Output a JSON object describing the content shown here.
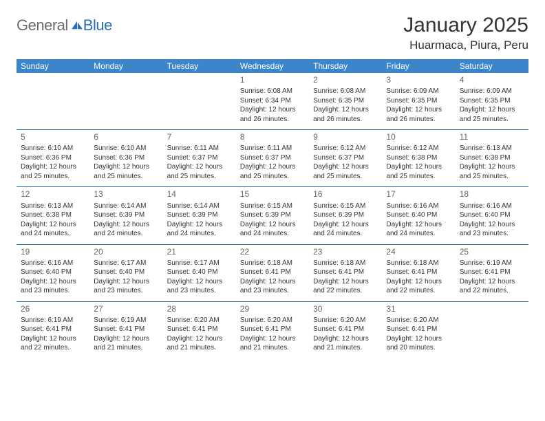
{
  "brand": {
    "part1": "General",
    "part2": "Blue"
  },
  "title": "January 2025",
  "location": "Huarmaca, Piura, Peru",
  "colors": {
    "header_bg": "#3b85c8",
    "header_text": "#ffffff",
    "rule": "#2a6db8",
    "body_text": "#333333",
    "day_number": "#666666",
    "logo_gray": "#6b6b6b",
    "logo_blue": "#2a6db8",
    "page_bg": "#ffffff"
  },
  "typography": {
    "title_fontsize": 30,
    "location_fontsize": 17,
    "dow_fontsize": 12,
    "daynum_fontsize": 12,
    "body_fontsize": 10
  },
  "days_of_week": [
    "Sunday",
    "Monday",
    "Tuesday",
    "Wednesday",
    "Thursday",
    "Friday",
    "Saturday"
  ],
  "weeks": [
    [
      null,
      null,
      null,
      {
        "n": "1",
        "sunrise": "6:08 AM",
        "sunset": "6:34 PM",
        "daylight": "12 hours and 26 minutes."
      },
      {
        "n": "2",
        "sunrise": "6:08 AM",
        "sunset": "6:35 PM",
        "daylight": "12 hours and 26 minutes."
      },
      {
        "n": "3",
        "sunrise": "6:09 AM",
        "sunset": "6:35 PM",
        "daylight": "12 hours and 26 minutes."
      },
      {
        "n": "4",
        "sunrise": "6:09 AM",
        "sunset": "6:35 PM",
        "daylight": "12 hours and 25 minutes."
      }
    ],
    [
      {
        "n": "5",
        "sunrise": "6:10 AM",
        "sunset": "6:36 PM",
        "daylight": "12 hours and 25 minutes."
      },
      {
        "n": "6",
        "sunrise": "6:10 AM",
        "sunset": "6:36 PM",
        "daylight": "12 hours and 25 minutes."
      },
      {
        "n": "7",
        "sunrise": "6:11 AM",
        "sunset": "6:37 PM",
        "daylight": "12 hours and 25 minutes."
      },
      {
        "n": "8",
        "sunrise": "6:11 AM",
        "sunset": "6:37 PM",
        "daylight": "12 hours and 25 minutes."
      },
      {
        "n": "9",
        "sunrise": "6:12 AM",
        "sunset": "6:37 PM",
        "daylight": "12 hours and 25 minutes."
      },
      {
        "n": "10",
        "sunrise": "6:12 AM",
        "sunset": "6:38 PM",
        "daylight": "12 hours and 25 minutes."
      },
      {
        "n": "11",
        "sunrise": "6:13 AM",
        "sunset": "6:38 PM",
        "daylight": "12 hours and 25 minutes."
      }
    ],
    [
      {
        "n": "12",
        "sunrise": "6:13 AM",
        "sunset": "6:38 PM",
        "daylight": "12 hours and 24 minutes."
      },
      {
        "n": "13",
        "sunrise": "6:14 AM",
        "sunset": "6:39 PM",
        "daylight": "12 hours and 24 minutes."
      },
      {
        "n": "14",
        "sunrise": "6:14 AM",
        "sunset": "6:39 PM",
        "daylight": "12 hours and 24 minutes."
      },
      {
        "n": "15",
        "sunrise": "6:15 AM",
        "sunset": "6:39 PM",
        "daylight": "12 hours and 24 minutes."
      },
      {
        "n": "16",
        "sunrise": "6:15 AM",
        "sunset": "6:39 PM",
        "daylight": "12 hours and 24 minutes."
      },
      {
        "n": "17",
        "sunrise": "6:16 AM",
        "sunset": "6:40 PM",
        "daylight": "12 hours and 24 minutes."
      },
      {
        "n": "18",
        "sunrise": "6:16 AM",
        "sunset": "6:40 PM",
        "daylight": "12 hours and 23 minutes."
      }
    ],
    [
      {
        "n": "19",
        "sunrise": "6:16 AM",
        "sunset": "6:40 PM",
        "daylight": "12 hours and 23 minutes."
      },
      {
        "n": "20",
        "sunrise": "6:17 AM",
        "sunset": "6:40 PM",
        "daylight": "12 hours and 23 minutes."
      },
      {
        "n": "21",
        "sunrise": "6:17 AM",
        "sunset": "6:40 PM",
        "daylight": "12 hours and 23 minutes."
      },
      {
        "n": "22",
        "sunrise": "6:18 AM",
        "sunset": "6:41 PM",
        "daylight": "12 hours and 23 minutes."
      },
      {
        "n": "23",
        "sunrise": "6:18 AM",
        "sunset": "6:41 PM",
        "daylight": "12 hours and 22 minutes."
      },
      {
        "n": "24",
        "sunrise": "6:18 AM",
        "sunset": "6:41 PM",
        "daylight": "12 hours and 22 minutes."
      },
      {
        "n": "25",
        "sunrise": "6:19 AM",
        "sunset": "6:41 PM",
        "daylight": "12 hours and 22 minutes."
      }
    ],
    [
      {
        "n": "26",
        "sunrise": "6:19 AM",
        "sunset": "6:41 PM",
        "daylight": "12 hours and 22 minutes."
      },
      {
        "n": "27",
        "sunrise": "6:19 AM",
        "sunset": "6:41 PM",
        "daylight": "12 hours and 21 minutes."
      },
      {
        "n": "28",
        "sunrise": "6:20 AM",
        "sunset": "6:41 PM",
        "daylight": "12 hours and 21 minutes."
      },
      {
        "n": "29",
        "sunrise": "6:20 AM",
        "sunset": "6:41 PM",
        "daylight": "12 hours and 21 minutes."
      },
      {
        "n": "30",
        "sunrise": "6:20 AM",
        "sunset": "6:41 PM",
        "daylight": "12 hours and 21 minutes."
      },
      {
        "n": "31",
        "sunrise": "6:20 AM",
        "sunset": "6:41 PM",
        "daylight": "12 hours and 20 minutes."
      },
      null
    ]
  ],
  "labels": {
    "sunrise": "Sunrise: ",
    "sunset": "Sunset: ",
    "daylight": "Daylight: "
  }
}
